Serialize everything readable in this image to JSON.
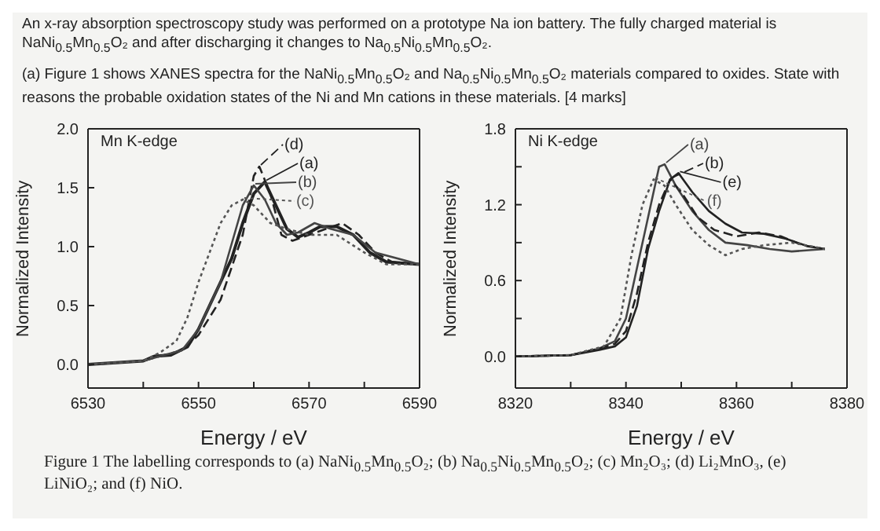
{
  "chart_data": [
    {
      "type": "line",
      "title": "An x-ray absorption spectroscopy study was performed on a prototype Na ion battery.  The fully charged material is NaNi$_{0.5}$Mn$_{0.5}$O₂ and after discharging it changes to Na$_{0.5}$Ni$_{0.5}$Mn$_{0.5}$O₂.",
      "subtitle": "(a) Figure 1 shows XANES spectra for the NaNi$_{0.5}$Mn$_{0.5}$O₂ and Na$_{0.5}$Ni$_{0.5}$Mn$_{0.5}$O₂ materials compared to oxides. State with reasons the probable oxidation states of the Ni and Mn cations in these materials.     [4 marks]",
      "xlabel": "Energy  /  eV",
      "ylabel": "Normalized Intensity",
      "annotations": [
        "Mn K-edge"
      ],
      "legend": "top",
      "marker": "none",
      "xlim": [
        6530,
        6590
      ],
      "xticks": [
        6530,
        {
          "value": 6540,
          "label": null
        },
        6550,
        {
          "value": 6560,
          "label": null
        },
        6570,
        {
          "value": 6580,
          "label": null
        },
        6590
      ],
      "ylim": [
        -0.2,
        2.0
      ],
      "yticks": [
        {
          "value": 0,
          "label": "0.0"
        },
        {
          "value": 0.5,
          "label": "0.5"
        },
        {
          "value": 1,
          "label": "1.0"
        },
        {
          "value": 1.5,
          "label": "1.5"
        },
        {
          "value": 2,
          "label": "2.0"
        }
      ],
      "series": [
        {
          "name": "(d)",
          "color": "#222222",
          "line_style": "dashed",
          "x": [
            6530,
            6540,
            6543,
            6547,
            6550,
            6554,
            6558,
            6560,
            6561,
            6563,
            6565,
            6567,
            6570,
            6573,
            6576,
            6579,
            6582,
            6585,
            6590
          ],
          "values": [
            0,
            0.03,
            0.07,
            0.12,
            0.25,
            0.55,
            1.1,
            1.6,
            1.68,
            1.45,
            1.1,
            1.05,
            1.1,
            1.15,
            1.2,
            1.1,
            0.95,
            0.87,
            0.85
          ]
        },
        {
          "name": "(a)",
          "color": "#222222",
          "line_style": "solid",
          "x": [
            6530,
            6540,
            6542,
            6545,
            6548,
            6550,
            6552,
            6554,
            6556,
            6558,
            6560,
            6562,
            6564,
            6566,
            6568,
            6570,
            6572,
            6575,
            6578,
            6581,
            6584,
            6590
          ],
          "values": [
            0,
            0.03,
            0.07,
            0.08,
            0.15,
            0.3,
            0.5,
            0.7,
            0.9,
            1.2,
            1.45,
            1.55,
            1.35,
            1.15,
            1.08,
            1.12,
            1.17,
            1.17,
            1.1,
            0.95,
            0.87,
            0.85
          ]
        },
        {
          "name": "(b)",
          "color": "#444444",
          "line_style": "solid",
          "x": [
            6530,
            6540,
            6543,
            6547,
            6550,
            6554,
            6558,
            6560,
            6562,
            6564,
            6566,
            6568,
            6571,
            6574,
            6578,
            6582,
            6590
          ],
          "values": [
            0,
            0.03,
            0.07,
            0.12,
            0.3,
            0.7,
            1.35,
            1.52,
            1.4,
            1.2,
            1.1,
            1.12,
            1.2,
            1.15,
            1.1,
            0.95,
            0.85
          ]
        },
        {
          "name": "(c)",
          "color": "#555555",
          "line_style": "dotted",
          "x": [
            6530,
            6540,
            6543,
            6546,
            6548,
            6550,
            6552,
            6554,
            6556,
            6558,
            6560,
            6563,
            6566,
            6570,
            6575,
            6580,
            6584,
            6590
          ],
          "values": [
            0,
            0.03,
            0.1,
            0.2,
            0.4,
            0.7,
            0.95,
            1.2,
            1.35,
            1.4,
            1.35,
            1.2,
            1.15,
            1.1,
            1.1,
            0.95,
            0.85,
            0.85
          ]
        }
      ]
    },
    {
      "type": "line",
      "xlabel": "Energy  /  eV",
      "ylabel": "Normalized Intensity",
      "annotations": [
        "Ni K-edge",
        "Figure 1    The labelling corresponds to (a) NaNi$_{0.5}$Mn$_{0.5}$O₂; (b) Na$_{0.5}$Ni$_{0.5}$Mn$_{0.5}$O₂; (c) Mn₂O₃; (d) Li₂MnO₃, (e) LiNiO₂; and (f) NiO."
      ],
      "legend": "top",
      "marker": "none",
      "xlim": [
        8320,
        8380
      ],
      "xticks": [
        8320,
        {
          "value": 8330,
          "label": null
        },
        8340,
        {
          "value": 8350,
          "label": null
        },
        8360,
        {
          "value": 8370,
          "label": null
        },
        8380
      ],
      "ylim": [
        -0.25,
        1.8
      ],
      "yticks": [
        {
          "value": 0,
          "label": "0.0"
        },
        {
          "value": 0.3,
          "label": null
        },
        {
          "value": 0.6,
          "label": "0.6"
        },
        {
          "value": 0.9,
          "label": null
        },
        {
          "value": 1.2,
          "label": "1.2"
        },
        {
          "value": 1.5,
          "label": null
        },
        {
          "value": 1.8,
          "label": "1.8"
        }
      ],
      "series": [
        {
          "name": "(a)",
          "color": "#444444",
          "line_style": "solid",
          "x": [
            8320,
            8330,
            8335,
            8338,
            8340,
            8342,
            8344,
            8346,
            8347,
            8349,
            8352,
            8355,
            8358,
            8362,
            8366,
            8370,
            8376
          ],
          "values": [
            0,
            0.01,
            0.06,
            0.12,
            0.3,
            0.7,
            1.1,
            1.5,
            1.52,
            1.35,
            1.15,
            1.0,
            0.9,
            0.88,
            0.85,
            0.83,
            0.85
          ]
        },
        {
          "name": "(b)",
          "color": "#222222",
          "line_style": "dashed",
          "x": [
            8320,
            8330,
            8335,
            8338,
            8340,
            8342,
            8344,
            8346,
            8348,
            8350,
            8353,
            8356,
            8360,
            8364,
            8368,
            8372,
            8376
          ],
          "values": [
            0,
            0.01,
            0.06,
            0.1,
            0.2,
            0.5,
            0.9,
            1.2,
            1.4,
            1.3,
            1.1,
            1.0,
            0.95,
            0.98,
            0.95,
            0.88,
            0.85
          ]
        },
        {
          "name": "(e)",
          "color": "#222222",
          "line_style": "solid",
          "x": [
            8320,
            8330,
            8335,
            8338,
            8340,
            8342,
            8344,
            8346,
            8348,
            8349.5,
            8352,
            8355,
            8358,
            8361,
            8365,
            8369,
            8373,
            8376
          ],
          "values": [
            0,
            0.01,
            0.05,
            0.08,
            0.15,
            0.4,
            0.85,
            1.15,
            1.4,
            1.45,
            1.3,
            1.15,
            1.05,
            0.98,
            0.97,
            0.93,
            0.87,
            0.85
          ]
        },
        {
          "name": "(f)",
          "color": "#555555",
          "line_style": "dotted",
          "x": [
            8320,
            8330,
            8336,
            8339,
            8341,
            8343,
            8345,
            8347,
            8349,
            8352,
            8355,
            8358,
            8361,
            8365,
            8370,
            8376
          ],
          "values": [
            0,
            0.01,
            0.08,
            0.3,
            0.8,
            1.2,
            1.4,
            1.35,
            1.2,
            1.0,
            0.88,
            0.8,
            0.85,
            0.88,
            0.9,
            0.85
          ]
        }
      ]
    }
  ]
}
